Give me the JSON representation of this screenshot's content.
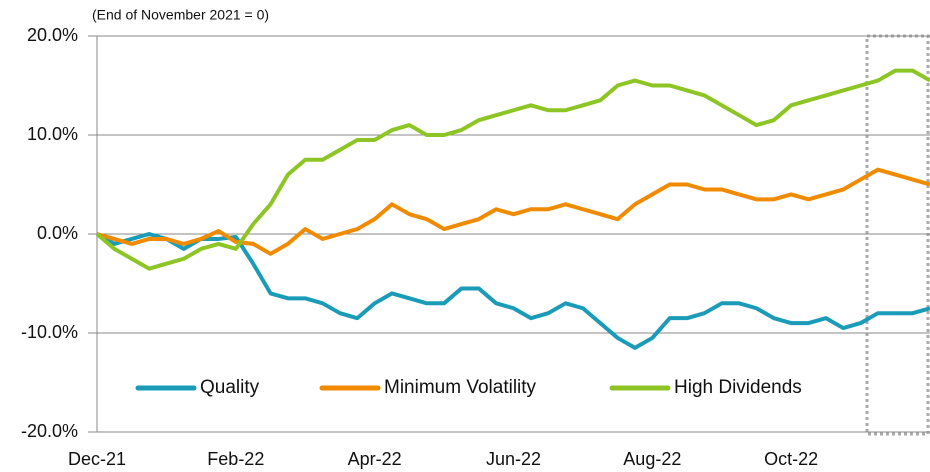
{
  "chart_data": {
    "type": "line",
    "annotation": "(End of November 2021 = 0)",
    "categories": [
      "Dec-21",
      null,
      null,
      null,
      null,
      null,
      null,
      null,
      "Feb-22",
      null,
      null,
      null,
      null,
      null,
      null,
      null,
      "Apr-22",
      null,
      null,
      null,
      null,
      null,
      null,
      null,
      "Jun-22",
      null,
      null,
      null,
      null,
      null,
      null,
      null,
      "Aug-22",
      null,
      null,
      null,
      null,
      null,
      null,
      null,
      "Oct-22",
      null,
      null,
      null,
      null,
      null,
      null,
      null,
      null
    ],
    "series": [
      {
        "name": "Quality",
        "color": "#1a9bb8",
        "values": [
          0,
          -1,
          -0.5,
          0,
          -0.5,
          -1.5,
          -0.5,
          -0.5,
          -0.3,
          -3,
          -6,
          -6.5,
          -6.5,
          -7,
          -8,
          -8.5,
          -7,
          -6,
          -6.5,
          -7,
          -7,
          -5.5,
          -5.5,
          -7,
          -7.5,
          -8.5,
          -8,
          -7,
          -7.5,
          -9,
          -10.5,
          -11.5,
          -10.5,
          -8.5,
          -8.5,
          -8,
          -7,
          -7,
          -7.5,
          -8.5,
          -9,
          -9,
          -8.5,
          -9.5,
          -9,
          -8,
          -8,
          -8,
          -7.5
        ]
      },
      {
        "name": "Minimum Volatility",
        "color": "#f08a00",
        "values": [
          0,
          -0.5,
          -1,
          -0.5,
          -0.5,
          -1,
          -0.5,
          0.3,
          -0.8,
          -1,
          -2,
          -1,
          0.5,
          -0.5,
          0,
          0.5,
          1.5,
          3,
          2,
          1.5,
          0.5,
          1,
          1.5,
          2.5,
          2,
          2.5,
          2.5,
          3,
          2.5,
          2,
          1.5,
          3,
          4,
          5,
          5,
          4.5,
          4.5,
          4,
          3.5,
          3.5,
          4,
          3.5,
          4,
          4.5,
          5.5,
          6.5,
          6,
          5.5,
          5
        ]
      },
      {
        "name": "High Dividends",
        "color": "#8cc524",
        "values": [
          0,
          -1.5,
          -2.5,
          -3.5,
          -3,
          -2.5,
          -1.5,
          -1,
          -1.5,
          1,
          3,
          6,
          7.5,
          7.5,
          8.5,
          9.5,
          9.5,
          10.5,
          11,
          10,
          10,
          10.5,
          11.5,
          12,
          12.5,
          13,
          12.5,
          12.5,
          13,
          13.5,
          15,
          15.5,
          15,
          15,
          14.5,
          14,
          13,
          12,
          11,
          11.5,
          13,
          13.5,
          14,
          14.5,
          15,
          15.5,
          16.5,
          16.5,
          15.5
        ]
      }
    ],
    "ylim": [
      -20,
      20
    ],
    "yticks": [
      {
        "value": 20,
        "label": "20.0%"
      },
      {
        "value": 10,
        "label": "10.0%"
      },
      {
        "value": 0,
        "label": "0.0%"
      },
      {
        "value": -10,
        "label": "-10.0%"
      },
      {
        "value": -20,
        "label": "-20.0%"
      }
    ],
    "grid": true
  }
}
